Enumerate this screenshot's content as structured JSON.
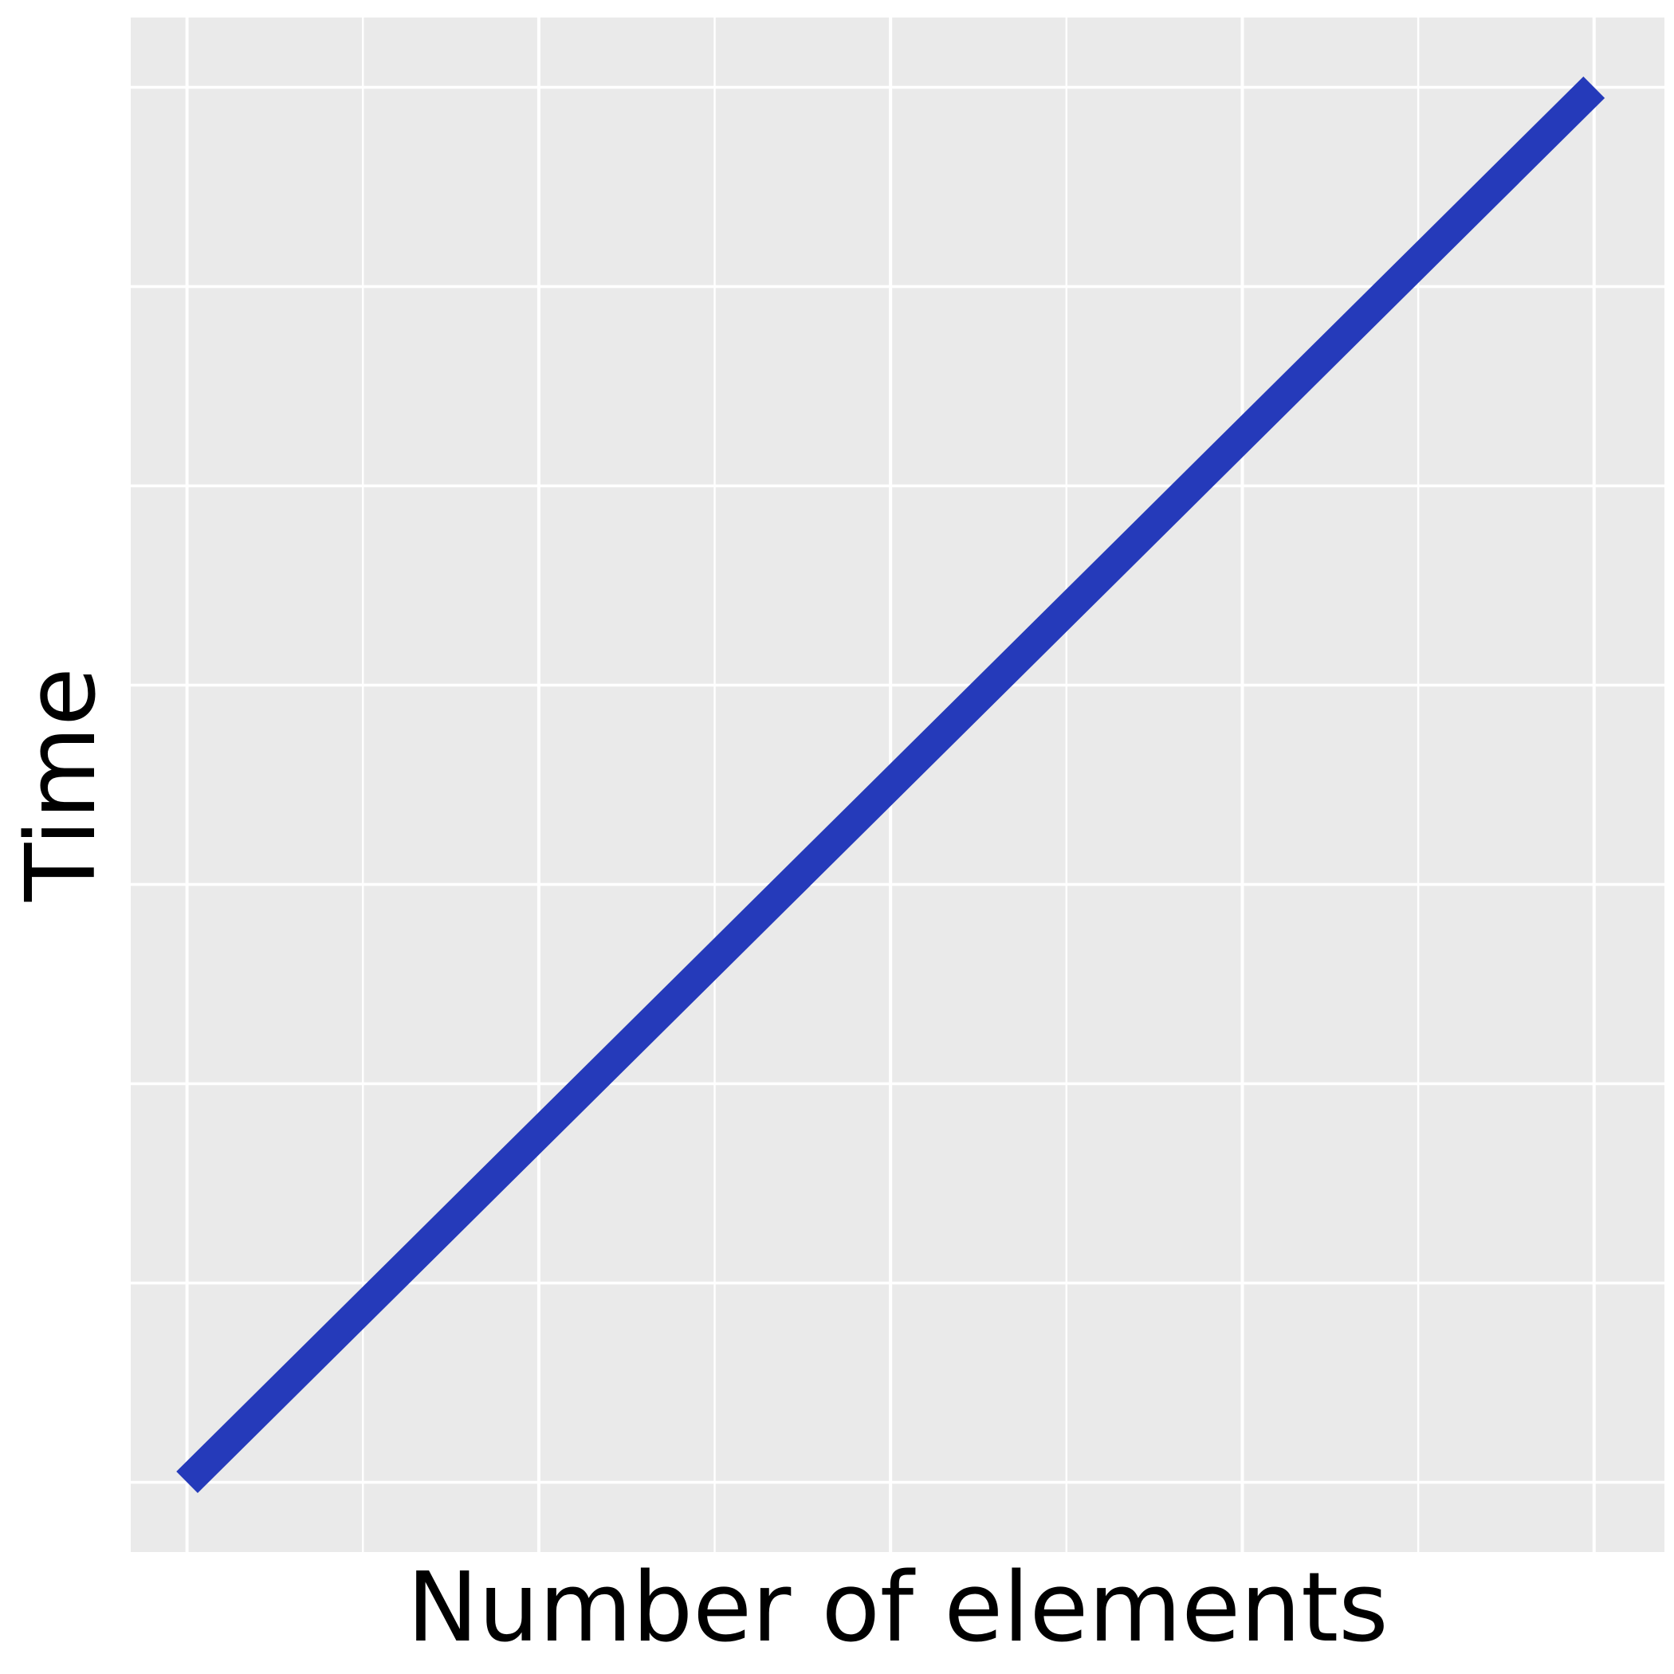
{
  "chart_data": {
    "type": "line",
    "title": "",
    "xlabel": "Number of elements",
    "ylabel": "Time",
    "x": [
      0,
      8
    ],
    "series": [
      {
        "values": [
          0,
          7
        ]
      }
    ],
    "xlim": [
      -0.32,
      8.4
    ],
    "ylim": [
      -0.35,
      7.35
    ],
    "xticks": [
      0,
      1,
      2,
      3,
      4,
      5,
      6,
      7,
      8
    ],
    "yticks": [
      0,
      1,
      2,
      3,
      4,
      5,
      6,
      7
    ],
    "show_tick_labels": false,
    "grid": true,
    "legend": "none"
  },
  "colors": {
    "background": "#ffffff",
    "panel": "#eaeaea",
    "grid": "#ffffff",
    "line": "#253aba",
    "text": "#000000"
  }
}
